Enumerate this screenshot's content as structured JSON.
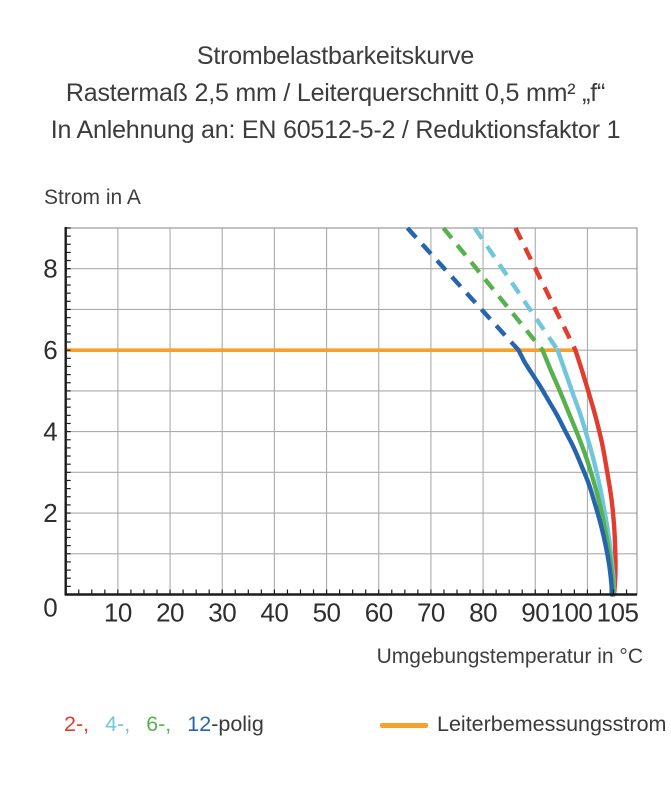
{
  "title": {
    "line1": "Strombelastbarkeitskurve",
    "line2": "Rastermaß 2,5 mm / Leiterquerschnitt 0,5 mm² „f“",
    "line3": "In Anlehnung an: EN 60512-5-2 / Reduktionsfaktor 1"
  },
  "chart_data": {
    "type": "line",
    "title": "Strombelastbarkeitskurve",
    "xlabel": "Umgebungstemperatur in °C",
    "ylabel": "Strom in A",
    "xlim": [
      0,
      109.5
    ],
    "ylim": [
      0,
      9
    ],
    "grid": true,
    "x_grid_values": [
      10,
      20,
      30,
      40,
      50,
      60,
      70,
      80,
      90,
      100
    ],
    "y_grid_values": [
      1,
      2,
      3,
      4,
      5,
      6,
      7,
      8
    ],
    "x_tick_labels": [
      {
        "v": 10,
        "label": "10"
      },
      {
        "v": 20,
        "label": "20"
      },
      {
        "v": 30,
        "label": "30"
      },
      {
        "v": 40,
        "label": "40"
      },
      {
        "v": 50,
        "label": "50"
      },
      {
        "v": 60,
        "label": "60"
      },
      {
        "v": 70,
        "label": "70"
      },
      {
        "v": 80,
        "label": "80"
      },
      {
        "v": 90,
        "label": "90"
      },
      {
        "v": 100,
        "label": "100",
        "dx": -16
      },
      {
        "v": 105,
        "label": "105",
        "dx": 4
      }
    ],
    "y_tick_labels": [
      {
        "v": 0,
        "label": "0",
        "dy": 13
      },
      {
        "v": 2,
        "label": "2"
      },
      {
        "v": 4,
        "label": "4"
      },
      {
        "v": 6,
        "label": "6"
      },
      {
        "v": 8,
        "label": "8"
      }
    ],
    "minor_tick_step": {
      "x": 2.5,
      "y": 0.2
    },
    "rated_current_line": {
      "label": "Leiterbemessungsstrom",
      "color": "#f89f2e",
      "value": 6.0,
      "x_start": 0,
      "x_end": 97.7
    },
    "series": [
      {
        "name": "2-polig",
        "color": "#e33b2e",
        "dashed": [
          [
            86.2,
            9
          ],
          [
            97.7,
            6
          ]
        ],
        "solid": [
          [
            97.7,
            6
          ],
          [
            99.2,
            5.4
          ],
          [
            100.6,
            4.8
          ],
          [
            101.8,
            4.25
          ],
          [
            102.9,
            3.65
          ],
          [
            103.8,
            3.0
          ],
          [
            104.6,
            2.35
          ],
          [
            105.1,
            1.7
          ],
          [
            105.35,
            1.0
          ],
          [
            105.35,
            0.45
          ],
          [
            105.1,
            0
          ]
        ]
      },
      {
        "name": "4-polig",
        "color": "#70c6da",
        "dashed": [
          [
            78.4,
            9
          ],
          [
            94.3,
            6
          ]
        ],
        "solid": [
          [
            94.3,
            6
          ],
          [
            95.8,
            5.45
          ],
          [
            97.3,
            4.9
          ],
          [
            98.7,
            4.4
          ],
          [
            100.0,
            3.85
          ],
          [
            101.2,
            3.3
          ],
          [
            102.3,
            2.7
          ],
          [
            103.2,
            2.1
          ],
          [
            104.0,
            1.5
          ],
          [
            104.6,
            0.9
          ],
          [
            105.0,
            0.35
          ],
          [
            105.0,
            0
          ]
        ]
      },
      {
        "name": "6-polig",
        "color": "#58b14e",
        "dashed": [
          [
            72.4,
            9
          ],
          [
            91.4,
            6
          ]
        ],
        "solid": [
          [
            91.4,
            6
          ],
          [
            93.0,
            5.5
          ],
          [
            94.7,
            5.0
          ],
          [
            96.3,
            4.5
          ],
          [
            97.9,
            4.0
          ],
          [
            99.4,
            3.5
          ],
          [
            100.8,
            2.95
          ],
          [
            102.0,
            2.4
          ],
          [
            103.0,
            1.85
          ],
          [
            103.8,
            1.3
          ],
          [
            104.5,
            0.75
          ],
          [
            104.9,
            0.25
          ],
          [
            104.9,
            0
          ]
        ]
      },
      {
        "name": "12-polig",
        "color": "#2665ae",
        "dashed": [
          [
            65.5,
            9
          ],
          [
            86.8,
            6
          ]
        ],
        "solid": [
          [
            86.8,
            6
          ],
          [
            88.0,
            5.7
          ],
          [
            89.5,
            5.4
          ],
          [
            91.0,
            5.1
          ],
          [
            92.6,
            4.75
          ],
          [
            94.2,
            4.4
          ],
          [
            95.8,
            4.0
          ],
          [
            97.4,
            3.6
          ],
          [
            98.9,
            3.15
          ],
          [
            100.3,
            2.7
          ],
          [
            101.5,
            2.2
          ],
          [
            102.6,
            1.7
          ],
          [
            103.5,
            1.2
          ],
          [
            104.2,
            0.7
          ],
          [
            104.6,
            0.25
          ],
          [
            104.65,
            0
          ]
        ]
      }
    ],
    "legend_position": "bottom"
  },
  "axes": {
    "y_title": "Strom in A",
    "x_title": "Umgebungstemperatur in °C"
  },
  "legend": {
    "pole_items": [
      {
        "text": "2-,",
        "color": "#e33b2e",
        "gap": true
      },
      {
        "text": "4-,",
        "color": "#70c6da",
        "gap": true
      },
      {
        "text": "6-,",
        "color": "#58b14e",
        "gap": true
      },
      {
        "text": "12",
        "color": "#2665ae",
        "gap": false
      },
      {
        "text": "-polig",
        "color": "#3a3a3a",
        "gap": false
      }
    ],
    "rated_label": "Leiterbemessungsstrom",
    "rated_color": "#f89f2e"
  },
  "style_colors": {
    "grid": "#ababab",
    "frame": "#999999",
    "axis": "#1b1b1b",
    "tick_text": "#2e2e2e"
  }
}
